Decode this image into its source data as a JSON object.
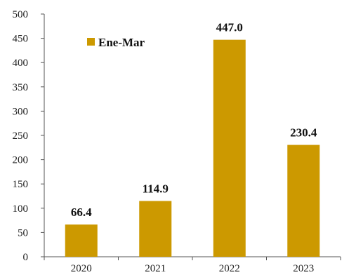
{
  "chart_data": {
    "type": "bar",
    "categories": [
      "2020",
      "2021",
      "2022",
      "2023"
    ],
    "series": [
      {
        "name": "Ene-Mar",
        "values": [
          66.4,
          114.9,
          447.0,
          230.4
        ]
      }
    ],
    "data_labels": [
      "66.4",
      "114.9",
      "447.0",
      "230.4"
    ],
    "yticks": [
      0,
      50,
      100,
      150,
      200,
      250,
      300,
      350,
      400,
      450,
      500
    ],
    "ylim": [
      0,
      500
    ],
    "title": "",
    "xlabel": "",
    "ylabel": "",
    "grid": false,
    "legend_position": "top-left",
    "colors": {
      "bar": "#CC9900",
      "axis": "#555555"
    }
  }
}
